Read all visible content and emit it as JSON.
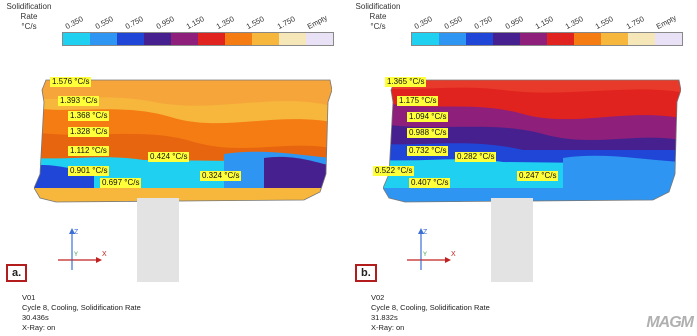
{
  "legend": {
    "title_lines": [
      "Solidification",
      "Rate",
      "°C/s"
    ],
    "ticks": [
      "0.350",
      "0.550",
      "0.750",
      "0.950",
      "1.150",
      "1.350",
      "1.550",
      "1.750",
      "Empty"
    ],
    "colors": [
      "#1fd0f0",
      "#2e96f2",
      "#2046d8",
      "#46208e",
      "#8e1f7a",
      "#e0231f",
      "#f57c13",
      "#f6b73c",
      "#f6e7b8",
      "#e9e1f5"
    ]
  },
  "panels": [
    {
      "tag": "a.",
      "callouts": [
        "1.576 °C/s",
        "1.393 °C/s",
        "1.368 °C/s",
        "1.328 °C/s",
        "1.112 °C/s",
        "0.901 °C/s",
        "0.697 °C/s",
        "0.424 °C/s",
        "0.324 °C/s"
      ],
      "caption": [
        "V01",
        "Cycle 8, Cooling, Solidification Rate",
        "30.436s",
        "X-Ray: on"
      ]
    },
    {
      "tag": "b.",
      "callouts": [
        "1.365 °C/s",
        "1.175 °C/s",
        "1.094 °C/s",
        "0.988 °C/s",
        "0.732 °C/s",
        "0.522 °C/s",
        "0.407 °C/s",
        "0.282 °C/s",
        "0.247 °C/s"
      ],
      "caption": [
        "V02",
        "Cycle 8, Cooling, Solidification Rate",
        "31.832s",
        "X-Ray: on"
      ]
    }
  ],
  "axes": {
    "z": "Z",
    "y": "Y",
    "x": "X"
  },
  "logo": "MAGM"
}
